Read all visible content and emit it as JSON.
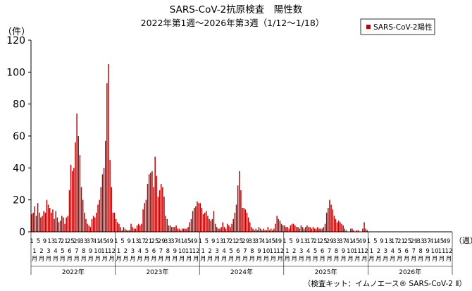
{
  "chart_data": {
    "type": "bar",
    "title": "SARS-CoV-2抗原検査　陽性数",
    "subtitle": "2022年第1週～2026年第3週（1/12～1/18）",
    "ylabel": "（件）",
    "xlabel": "（週）",
    "ylim": [
      0,
      120
    ],
    "yticks": [
      0,
      20,
      40,
      60,
      80,
      100,
      120
    ],
    "grid": false,
    "legend_position": "top-right",
    "series": [
      {
        "name": "SARS-CoV-2陽性",
        "color": "#c00000",
        "by_year": [
          {
            "year": "2022年",
            "values": [
              11,
              12,
              16,
              10,
              18,
              12,
              9,
              10,
              13,
              12,
              20,
              17,
              15,
              12,
              14,
              8,
              13,
              9,
              6,
              7,
              10,
              9,
              5,
              9,
              10,
              26,
              42,
              38,
              40,
              56,
              74,
              60,
              48,
              28,
              20,
              12,
              8,
              5,
              4,
              3,
              8,
              10,
              9,
              12,
              17,
              20,
              28,
              36,
              40,
              57,
              93,
              105,
              45,
              28,
              12,
              12
            ]
          },
          {
            "year": "2023年",
            "values": [
              8,
              6,
              5,
              3,
              1,
              3,
              2,
              1,
              1,
              1,
              5,
              3,
              2,
              2,
              4,
              5,
              4,
              5,
              14,
              18,
              20,
              30,
              36,
              37,
              38,
              28,
              47,
              35,
              22,
              26,
              30,
              28,
              22,
              10,
              8,
              4,
              4,
              3,
              3,
              3,
              4,
              2,
              2,
              1,
              2,
              2,
              2,
              2,
              3,
              6,
              8,
              13,
              15,
              16,
              19,
              18
            ]
          },
          {
            "year": "2024年",
            "values": [
              18,
              15,
              11,
              12,
              13,
              10,
              8,
              7,
              8,
              13,
              5,
              3,
              2,
              2,
              3,
              6,
              3,
              2,
              5,
              4,
              3,
              5,
              8,
              12,
              17,
              29,
              38,
              26,
              15,
              15,
              14,
              12,
              9,
              6,
              3,
              2,
              1,
              2,
              1,
              3,
              2,
              1,
              2,
              1,
              1,
              3,
              1,
              2,
              1,
              2,
              5,
              10,
              8,
              7,
              5,
              4
            ]
          },
          {
            "year": "2025年",
            "values": [
              4,
              3,
              3,
              2,
              4,
              5,
              5,
              4,
              3,
              3,
              2,
              4,
              3,
              2,
              3,
              4,
              3,
              3,
              2,
              3,
              2,
              2,
              3,
              2,
              2,
              2,
              3,
              5,
              12,
              15,
              20,
              17,
              14,
              10,
              8,
              6,
              7,
              6,
              5,
              4,
              2,
              1,
              0,
              0,
              2,
              2,
              1,
              0,
              1,
              1,
              0,
              0,
              2,
              6,
              2,
              1
            ]
          },
          {
            "year": "2026年",
            "values": [
              0,
              0,
              0
            ]
          }
        ]
      }
    ],
    "week_ticks": [
      "1",
      "5",
      "9",
      "13",
      "17",
      "21",
      "25",
      "29",
      "33",
      "37",
      "41",
      "45",
      "49"
    ],
    "month_ticks": [
      "1",
      "2",
      "3",
      "4",
      "5",
      "6",
      "7",
      "8",
      "9",
      "10",
      "11",
      "12"
    ],
    "month_label": "月",
    "years": [
      "2022年",
      "2023年",
      "2024年",
      "2025年",
      "2026年"
    ]
  },
  "footnote": "（検査キット：イムノエース® SARS-CoV-2 Ⅱ）"
}
